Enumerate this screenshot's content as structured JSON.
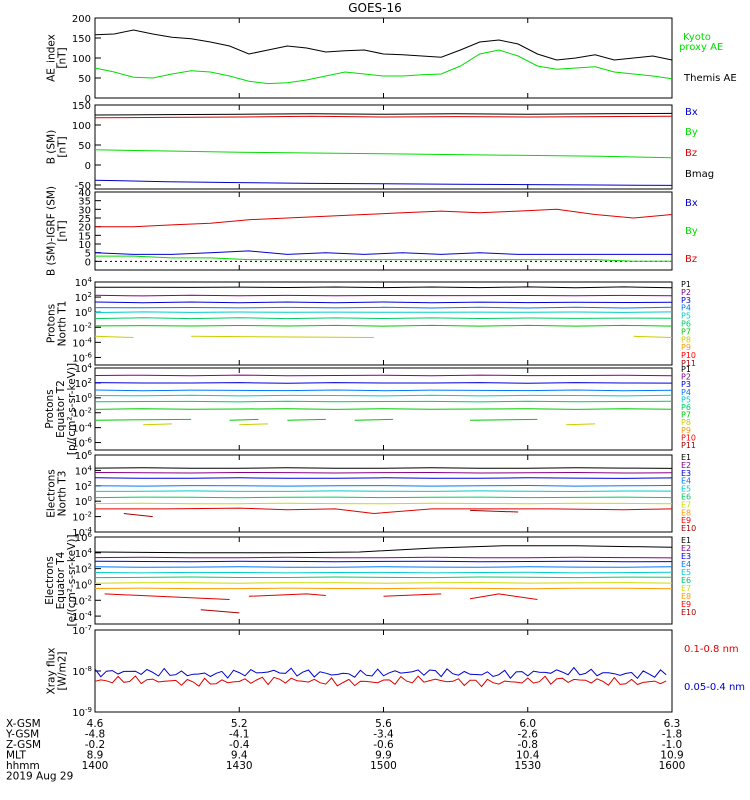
{
  "title": "GOES-16",
  "date_label": "2019 Aug 29",
  "colors": {
    "black": "#000000",
    "red": "#e00000",
    "green": "#00dd00",
    "blue": "#0000cc",
    "P": [
      "#000000",
      "#880088",
      "#0000dd",
      "#0077ff",
      "#00cccc",
      "#00cc66",
      "#00cc00",
      "#cccc00",
      "#ff9900",
      "#ff0000",
      "#aa0000"
    ],
    "E": [
      "#000000",
      "#880088",
      "#0000dd",
      "#0077ff",
      "#00cccc",
      "#00cc66",
      "#ccdd00",
      "#ff9900",
      "#ff0000",
      "#aa0000"
    ]
  },
  "bottom_axis": {
    "rows": [
      {
        "label": "X-GSM",
        "values": [
          "4.6",
          "5.2",
          "5.6",
          "6.0",
          "6.3"
        ]
      },
      {
        "label": "Y-GSM",
        "values": [
          "-4.8",
          "-4.1",
          "-3.4",
          "-2.6",
          "-1.8"
        ]
      },
      {
        "label": "Z-GSM",
        "values": [
          "-0.2",
          "-0.4",
          "-0.6",
          "-0.8",
          "-1.0"
        ]
      },
      {
        "label": "MLT",
        "values": [
          "8.9",
          "9.4",
          "9.9",
          "10.4",
          "10.9"
        ]
      },
      {
        "label": "hhmm",
        "values": [
          "1400",
          "1430",
          "1500",
          "1530",
          "1600"
        ]
      }
    ]
  },
  "chart_data": [
    {
      "type": "line",
      "ylabel": [
        "AE_index",
        "[nT]"
      ],
      "ylim": [
        0,
        200
      ],
      "yticks": [
        "0",
        "50",
        "100",
        "150",
        "200"
      ],
      "x": [
        0,
        4,
        8,
        12,
        16,
        20,
        24,
        28,
        32,
        36,
        40,
        44,
        48,
        52,
        56,
        60,
        64,
        68,
        72,
        76,
        80,
        84,
        88,
        92,
        96,
        100,
        104,
        108,
        112,
        116,
        120
      ],
      "series": [
        {
          "name": "Kyoto proxy AE",
          "color": "#00dd00",
          "values": [
            75,
            65,
            52,
            50,
            60,
            68,
            65,
            55,
            42,
            36,
            38,
            45,
            55,
            65,
            60,
            55,
            55,
            58,
            60,
            80,
            110,
            120,
            105,
            80,
            72,
            75,
            78,
            65,
            60,
            55,
            48
          ]
        },
        {
          "name": "Themis AE",
          "color": "#000000",
          "values": [
            158,
            160,
            170,
            160,
            152,
            148,
            140,
            130,
            110,
            120,
            130,
            125,
            115,
            118,
            120,
            110,
            108,
            105,
            102,
            120,
            140,
            145,
            135,
            110,
            95,
            100,
            108,
            95,
            100,
            105,
            95
          ]
        }
      ],
      "legend": [
        {
          "text": "Kyoto",
          "color": "#00dd00"
        },
        {
          "text": "proxy AE",
          "color": "#00dd00"
        },
        {
          "text": "Themis AE",
          "color": "#000000"
        }
      ]
    },
    {
      "type": "line",
      "ylabel": [
        "B (SM)",
        "[nT]"
      ],
      "ylim": [
        -60,
        150
      ],
      "yticks": [
        "-50",
        "0",
        "50",
        "100",
        "150"
      ],
      "x": [
        0,
        15,
        30,
        45,
        60,
        75,
        90,
        105,
        120
      ],
      "series": [
        {
          "name": "Bx",
          "color": "#0000cc",
          "values": [
            -38,
            -42,
            -44,
            -46,
            -47,
            -48,
            -49,
            -50,
            -51
          ]
        },
        {
          "name": "By",
          "color": "#00dd00",
          "values": [
            38,
            35,
            32,
            30,
            28,
            26,
            24,
            22,
            18
          ]
        },
        {
          "name": "Bz",
          "color": "#e00000",
          "values": [
            118,
            119,
            120,
            122,
            120,
            121,
            120,
            121,
            122
          ]
        },
        {
          "name": "Bmag",
          "color": "#000000",
          "values": [
            125,
            126,
            127,
            128,
            127,
            128,
            127,
            128,
            129
          ]
        }
      ],
      "legend": [
        {
          "text": "Bx",
          "color": "#0000cc"
        },
        {
          "text": "By",
          "color": "#00dd00"
        },
        {
          "text": "Bz",
          "color": "#e00000"
        },
        {
          "text": "Bmag",
          "color": "#000000"
        }
      ]
    },
    {
      "type": "line",
      "ylabel": [
        "B (SM)-IGRF (SM)",
        "[nT]"
      ],
      "ylim": [
        -5,
        40
      ],
      "yticks": [
        "0",
        "5",
        "10",
        "15",
        "20",
        "25",
        "30",
        "35",
        "40"
      ],
      "x": [
        0,
        8,
        16,
        24,
        32,
        40,
        48,
        56,
        64,
        72,
        80,
        88,
        96,
        104,
        112,
        120
      ],
      "series": [
        {
          "name": "Bx",
          "color": "#0000cc",
          "values": [
            5,
            4,
            4,
            5,
            6,
            4,
            5,
            4,
            5,
            4,
            5,
            4,
            4,
            4,
            4,
            4
          ]
        },
        {
          "name": "By",
          "color": "#00dd00",
          "values": [
            3,
            3,
            2,
            2,
            1,
            1,
            1,
            1,
            1,
            1,
            1,
            1,
            1,
            1,
            0,
            0
          ]
        },
        {
          "name": "Bz",
          "color": "#e00000",
          "values": [
            20,
            20,
            21,
            22,
            24,
            25,
            26,
            27,
            28,
            29,
            28,
            29,
            30,
            27,
            25,
            27
          ]
        }
      ],
      "legend": [
        {
          "text": "Bx",
          "color": "#0000cc"
        },
        {
          "text": "By",
          "color": "#00dd00"
        },
        {
          "text": "Bz",
          "color": "#e00000"
        }
      ]
    },
    {
      "type": "line",
      "ylabel": [
        "Protons",
        "North T1"
      ],
      "log": true,
      "ylim_exp": [
        -7,
        4
      ],
      "yticks": [
        {
          "exp": 4
        },
        {
          "exp": 2
        },
        {
          "exp": 0
        },
        {
          "exp": -2
        },
        {
          "exp": -4
        },
        {
          "exp": -6
        }
      ],
      "levels_exp": [
        3.3,
        2.2,
        1.3,
        0.6,
        0,
        -0.8,
        -1.8
      ],
      "dashed": [
        {
          "y_exp": -3.2,
          "segments": [
            [
              0,
              8
            ],
            [
              20,
              58
            ],
            [
              112,
              120
            ]
          ],
          "color": "#cccc00"
        }
      ],
      "legend": [
        "P1",
        "P2",
        "P3",
        "P4",
        "P5",
        "P6",
        "P7",
        "P8",
        "P9",
        "P10",
        "P11"
      ]
    },
    {
      "type": "line",
      "ylabel": [
        "Protons",
        "Equator T2",
        "[p/(cm²-s-sr-keV)]"
      ],
      "log": true,
      "ylim_exp": [
        -7,
        4
      ],
      "yticks": [
        {
          "exp": 4
        },
        {
          "exp": 2
        },
        {
          "exp": 0
        },
        {
          "exp": -2
        },
        {
          "exp": -4
        },
        {
          "exp": -6
        }
      ],
      "levels_exp": [
        3.0,
        2.0,
        1.0,
        0.3,
        -0.5,
        -1.5
      ],
      "dashed": [
        {
          "y_exp": -3.0,
          "segments": [
            [
              0,
              20
            ],
            [
              28,
              34
            ],
            [
              40,
              48
            ],
            [
              54,
              62
            ],
            [
              78,
              92
            ]
          ],
          "color": "#00cc00"
        },
        {
          "y_exp": -3.6,
          "segments": [
            [
              10,
              16
            ],
            [
              30,
              36
            ],
            [
              98,
              104
            ]
          ],
          "color": "#cccc00"
        }
      ],
      "legend": [
        "P1",
        "P2",
        "P3",
        "P4",
        "P5",
        "P6",
        "P7",
        "P8",
        "P9",
        "P10",
        "P11"
      ]
    },
    {
      "type": "line",
      "ylabel": [
        "Electrons",
        "North T3"
      ],
      "log": true,
      "ylim_exp": [
        -4,
        6
      ],
      "yticks": [
        {
          "exp": 6
        },
        {
          "exp": 4
        },
        {
          "exp": 2
        },
        {
          "exp": 0
        },
        {
          "exp": -2
        },
        {
          "exp": -4
        }
      ],
      "levels_exp": [
        4.3,
        3.7,
        3.0,
        2.0,
        1.3,
        0.5,
        -0.3
      ],
      "series_e8": {
        "x": [
          0,
          15,
          30,
          40,
          50,
          58,
          70,
          80,
          95,
          110,
          120
        ],
        "values_exp": [
          -1.0,
          -1.0,
          -0.9,
          -1.1,
          -1.0,
          -1.6,
          -1.0,
          -1.0,
          -1.0,
          -1.1,
          -1.0
        ]
      },
      "segments_e9": [
        [
          [
            6,
            -1.6
          ],
          [
            12,
            -2.0
          ]
        ],
        [
          [
            78,
            -1.2
          ],
          [
            88,
            -1.4
          ]
        ]
      ],
      "legend": [
        "E1",
        "E2",
        "E3",
        "E4",
        "E5",
        "E6",
        "E7",
        "E8",
        "E9",
        "E10"
      ]
    },
    {
      "type": "line",
      "ylabel": [
        "Electrons",
        "Equator T4",
        "[e/(cm²-s-sr-keV)]"
      ],
      "log": true,
      "ylim_exp": [
        -5,
        6
      ],
      "yticks": [
        {
          "exp": 6
        },
        {
          "exp": 4
        },
        {
          "exp": 2
        },
        {
          "exp": 0
        },
        {
          "exp": -2
        },
        {
          "exp": -4
        }
      ],
      "top_series": {
        "x": [
          0,
          20,
          40,
          55,
          70,
          85,
          100,
          120
        ],
        "values_exp": [
          4.1,
          4.0,
          4.0,
          4.1,
          4.6,
          4.9,
          4.9,
          4.7
        ]
      },
      "levels_exp": [
        3.4,
        2.9,
        2.2,
        1.5,
        0.9,
        0.2,
        -0.5
      ],
      "segments_e9": [
        [
          [
            2,
            -1.2
          ],
          [
            28,
            -1.9
          ]
        ],
        [
          [
            32,
            -1.5
          ],
          [
            44,
            -1.2
          ],
          [
            48,
            -1.4
          ]
        ],
        [
          [
            60,
            -1.5
          ],
          [
            72,
            -1.2
          ]
        ],
        [
          [
            78,
            -1.8
          ],
          [
            84,
            -1.2
          ],
          [
            92,
            -1.9
          ]
        ]
      ],
      "segments_e10": [
        [
          [
            22,
            -3.2
          ],
          [
            30,
            -3.6
          ]
        ]
      ],
      "legend": [
        "E1",
        "E2",
        "E3",
        "E4",
        "E5",
        "E6",
        "E7",
        "E8",
        "E9",
        "E10"
      ]
    },
    {
      "type": "line",
      "ylabel": [
        "Xray flux",
        "[W/m2]"
      ],
      "log": true,
      "ylim_exp": [
        -9,
        -7
      ],
      "yticks": [
        {
          "exp": -7
        },
        {
          "exp": -8
        },
        {
          "exp": -9
        }
      ],
      "series": [
        {
          "name": "0.1-0.8 nm",
          "color": "#e00000",
          "base_exp": -8.25
        },
        {
          "name": "0.05-0.4 nm",
          "color": "#0000cc",
          "base_exp": -8.05
        }
      ],
      "legend": [
        {
          "text": "0.1-0.8 nm",
          "color": "#e00000"
        },
        {
          "text": "0.05-0.4 nm",
          "color": "#0000cc"
        }
      ]
    }
  ]
}
